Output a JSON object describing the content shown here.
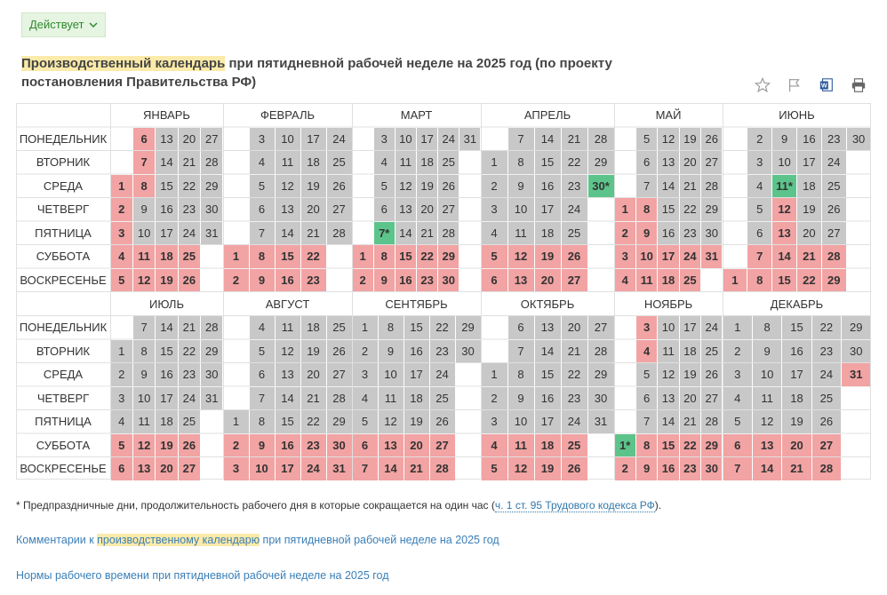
{
  "status": {
    "label": "Действует"
  },
  "title": {
    "highlight": "Производственный календарь",
    "rest": " при пятидневной рабочей неделе на 2025 год (по проекту постановления Правительства РФ)"
  },
  "toolbar": [
    "star-icon",
    "flag-icon",
    "word-icon",
    "print-icon"
  ],
  "colors": {
    "workday": "#c8c8c8",
    "holiday": "#f2a3a3",
    "preholiday": "#5cc48a",
    "grid": "#e0e0e0"
  },
  "weekdays": [
    "ПОНЕДЕЛЬНИК",
    "ВТОРНИК",
    "СРЕДА",
    "ЧЕТВЕРГ",
    "ПЯТНИЦА",
    "СУББОТА",
    "ВОСКРЕСЕНЬЕ"
  ],
  "months": [
    {
      "name": "ЯНВАРЬ",
      "weeks": [
        [
          null,
          null,
          "1h",
          "2h",
          "3h",
          "4h",
          "5h"
        ],
        [
          "6h",
          "7h",
          "8h",
          "9",
          "10",
          "11h",
          "12h"
        ],
        [
          "13",
          "14",
          "15",
          "16",
          "17",
          "18h",
          "19h"
        ],
        [
          "20",
          "21",
          "22",
          "23",
          "24",
          "25h",
          "26h"
        ],
        [
          "27",
          "28",
          "29",
          "30",
          "31",
          null,
          null
        ]
      ]
    },
    {
      "name": "ФЕВРАЛЬ",
      "weeks": [
        [
          null,
          null,
          null,
          null,
          null,
          "1h",
          "2h"
        ],
        [
          "3",
          "4",
          "5",
          "6",
          "7",
          "8h",
          "9h"
        ],
        [
          "10",
          "11",
          "12",
          "13",
          "14",
          "15h",
          "16h"
        ],
        [
          "17",
          "18",
          "19",
          "20",
          "21",
          "22h",
          "23h"
        ],
        [
          "24",
          "25",
          "26",
          "27",
          "28",
          null,
          null
        ]
      ]
    },
    {
      "name": "МАРТ",
      "weeks": [
        [
          null,
          null,
          null,
          null,
          null,
          "1h",
          "2h"
        ],
        [
          "3",
          "4",
          "5",
          "6",
          "7*p",
          "8h",
          "9h"
        ],
        [
          "10",
          "11",
          "12",
          "13",
          "14",
          "15h",
          "16h"
        ],
        [
          "17",
          "18",
          "19",
          "20",
          "21",
          "22h",
          "23h"
        ],
        [
          "24",
          "25",
          "26",
          "27",
          "28",
          "29h",
          "30h"
        ],
        [
          "31",
          null,
          null,
          null,
          null,
          null,
          null
        ]
      ]
    },
    {
      "name": "АПРЕЛЬ",
      "weeks": [
        [
          null,
          "1",
          "2",
          "3",
          "4",
          "5h",
          "6h"
        ],
        [
          "7",
          "8",
          "9",
          "10",
          "11",
          "12h",
          "13h"
        ],
        [
          "14",
          "15",
          "16",
          "17",
          "18",
          "19h",
          "20h"
        ],
        [
          "21",
          "22",
          "23",
          "24",
          "25",
          "26h",
          "27h"
        ],
        [
          "28",
          "29",
          "30*p",
          null,
          null,
          null,
          null
        ]
      ]
    },
    {
      "name": "МАЙ",
      "weeks": [
        [
          null,
          null,
          null,
          "1h",
          "2h",
          "3h",
          "4h"
        ],
        [
          "5",
          "6",
          "7",
          "8h",
          "9h",
          "10h",
          "11h"
        ],
        [
          "12",
          "13",
          "14",
          "15",
          "16",
          "17h",
          "18h"
        ],
        [
          "19",
          "20",
          "21",
          "22",
          "23",
          "24h",
          "25h"
        ],
        [
          "26",
          "27",
          "28",
          "29",
          "30",
          "31h",
          null
        ]
      ]
    },
    {
      "name": "ИЮНЬ",
      "weeks": [
        [
          null,
          null,
          null,
          null,
          null,
          null,
          "1h"
        ],
        [
          "2",
          "3",
          "4",
          "5",
          "6",
          "7h",
          "8h"
        ],
        [
          "9",
          "10",
          "11*p",
          "12h",
          "13h",
          "14h",
          "15h"
        ],
        [
          "16",
          "17",
          "18",
          "19",
          "20",
          "21h",
          "22h"
        ],
        [
          "23",
          "24",
          "25",
          "26",
          "27",
          "28h",
          "29h"
        ],
        [
          "30",
          null,
          null,
          null,
          null,
          null,
          null
        ]
      ]
    },
    {
      "name": "ИЮЛЬ",
      "weeks": [
        [
          null,
          "1",
          "2",
          "3",
          "4",
          "5h",
          "6h"
        ],
        [
          "7",
          "8",
          "9",
          "10",
          "11",
          "12h",
          "13h"
        ],
        [
          "14",
          "15",
          "16",
          "17",
          "18",
          "19h",
          "20h"
        ],
        [
          "21",
          "22",
          "23",
          "24",
          "25",
          "26h",
          "27h"
        ],
        [
          "28",
          "29",
          "30",
          "31",
          null,
          null,
          null
        ]
      ]
    },
    {
      "name": "АВГУСТ",
      "weeks": [
        [
          null,
          null,
          null,
          null,
          "1",
          "2h",
          "3h"
        ],
        [
          "4",
          "5",
          "6",
          "7",
          "8",
          "9h",
          "10h"
        ],
        [
          "11",
          "12",
          "13",
          "14",
          "15",
          "16h",
          "17h"
        ],
        [
          "18",
          "19",
          "20",
          "21",
          "22",
          "23h",
          "24h"
        ],
        [
          "25",
          "26",
          "27",
          "28",
          "29",
          "30h",
          "31h"
        ]
      ]
    },
    {
      "name": "СЕНТЯБРЬ",
      "weeks": [
        [
          "1",
          "2",
          "3",
          "4",
          "5",
          "6h",
          "7h"
        ],
        [
          "8",
          "9",
          "10",
          "11",
          "12",
          "13h",
          "14h"
        ],
        [
          "15",
          "16",
          "17",
          "18",
          "19",
          "20h",
          "21h"
        ],
        [
          "22",
          "23",
          "24",
          "25",
          "26",
          "27h",
          "28h"
        ],
        [
          "29",
          "30",
          null,
          null,
          null,
          null,
          null
        ]
      ]
    },
    {
      "name": "ОКТЯБРЬ",
      "weeks": [
        [
          null,
          null,
          "1",
          "2",
          "3",
          "4h",
          "5h"
        ],
        [
          "6",
          "7",
          "8",
          "9",
          "10",
          "11h",
          "12h"
        ],
        [
          "13",
          "14",
          "15",
          "16",
          "17",
          "18h",
          "19h"
        ],
        [
          "20",
          "21",
          "22",
          "23",
          "24",
          "25h",
          "26h"
        ],
        [
          "27",
          "28",
          "29",
          "30",
          "31",
          null,
          null
        ]
      ]
    },
    {
      "name": "НОЯБРЬ",
      "weeks": [
        [
          null,
          null,
          null,
          null,
          null,
          "1*p",
          "2h"
        ],
        [
          "3h",
          "4h",
          "5",
          "6",
          "7",
          "8h",
          "9h"
        ],
        [
          "10",
          "11",
          "12",
          "13",
          "14",
          "15h",
          "16h"
        ],
        [
          "17",
          "18",
          "19",
          "20",
          "21",
          "22h",
          "23h"
        ],
        [
          "24",
          "25",
          "26",
          "27",
          "28",
          "29h",
          "30h"
        ]
      ]
    },
    {
      "name": "ДЕКАБРЬ",
      "weeks": [
        [
          "1",
          "2",
          "3",
          "4",
          "5",
          "6h",
          "7h"
        ],
        [
          "8",
          "9",
          "10",
          "11",
          "12",
          "13h",
          "14h"
        ],
        [
          "15",
          "16",
          "17",
          "18",
          "19",
          "20h",
          "21h"
        ],
        [
          "22",
          "23",
          "24",
          "25",
          "26",
          "27h",
          "28h"
        ],
        [
          "29",
          "30",
          "31h",
          null,
          null,
          null,
          null
        ]
      ]
    }
  ],
  "footnote": {
    "text": "* Предпраздничные дни, продолжительность рабочего дня в которые сокращается на один час (",
    "link": "ч. 1 ст. 95 Трудового кодекса РФ",
    "tail": ")."
  },
  "links": {
    "comments": {
      "pre": "Комментарии к ",
      "highlight": "производственному календарю",
      "post": " при пятидневной рабочей неделе на 2025 год"
    },
    "norms": "Нормы рабочего времени при пятидневной рабочей неделе на 2025 год"
  }
}
